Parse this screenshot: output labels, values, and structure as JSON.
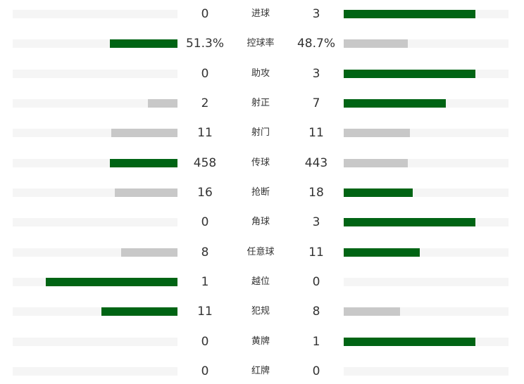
{
  "colors": {
    "leader": "#006414",
    "trailer": "#c8c8c8",
    "track": "#f5f5f5",
    "text": "#333333"
  },
  "stats": [
    {
      "label": "进球",
      "home": "0",
      "away": "3",
      "home_share": 0.0,
      "away_share": 0.8,
      "home_leads": false,
      "away_leads": true
    },
    {
      "label": "控球率",
      "home": "51.3%",
      "away": "48.7%",
      "home_share": 0.41,
      "away_share": 0.39,
      "home_leads": true,
      "away_leads": false
    },
    {
      "label": "助攻",
      "home": "0",
      "away": "3",
      "home_share": 0.0,
      "away_share": 0.8,
      "home_leads": false,
      "away_leads": true
    },
    {
      "label": "射正",
      "home": "2",
      "away": "7",
      "home_share": 0.18,
      "away_share": 0.62,
      "home_leads": false,
      "away_leads": true
    },
    {
      "label": "射门",
      "home": "11",
      "away": "11",
      "home_share": 0.4,
      "away_share": 0.4,
      "home_leads": false,
      "away_leads": false
    },
    {
      "label": "传球",
      "home": "458",
      "away": "443",
      "home_share": 0.41,
      "away_share": 0.39,
      "home_leads": true,
      "away_leads": false
    },
    {
      "label": "抢断",
      "home": "16",
      "away": "18",
      "home_share": 0.38,
      "away_share": 0.42,
      "home_leads": false,
      "away_leads": true
    },
    {
      "label": "角球",
      "home": "0",
      "away": "3",
      "home_share": 0.0,
      "away_share": 0.8,
      "home_leads": false,
      "away_leads": true
    },
    {
      "label": "任意球",
      "home": "8",
      "away": "11",
      "home_share": 0.34,
      "away_share": 0.46,
      "home_leads": false,
      "away_leads": true
    },
    {
      "label": "越位",
      "home": "1",
      "away": "0",
      "home_share": 0.8,
      "away_share": 0.0,
      "home_leads": true,
      "away_leads": false
    },
    {
      "label": "犯规",
      "home": "11",
      "away": "8",
      "home_share": 0.46,
      "away_share": 0.34,
      "home_leads": true,
      "away_leads": false
    },
    {
      "label": "黄牌",
      "home": "0",
      "away": "1",
      "home_share": 0.0,
      "away_share": 0.8,
      "home_leads": false,
      "away_leads": true
    },
    {
      "label": "红牌",
      "home": "0",
      "away": "0",
      "home_share": 0.0,
      "away_share": 0.0,
      "home_leads": false,
      "away_leads": false
    }
  ]
}
